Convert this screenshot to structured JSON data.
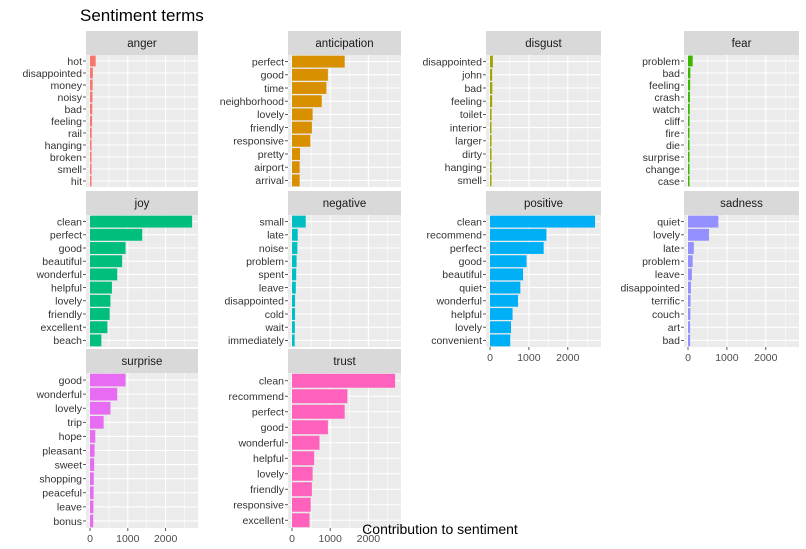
{
  "chart_data": {
    "type": "bar",
    "orientation": "horizontal",
    "title": "Sentiment terms",
    "xlabel": "Contribution to sentiment",
    "ylabel": "",
    "xlim": [
      0,
      2750
    ],
    "x_ticks": [
      0,
      1000,
      2000
    ],
    "grid": true,
    "legend": "none",
    "panels": [
      {
        "name": "anger",
        "color": "#F8766D",
        "categories": [
          "hot",
          "disappointed",
          "money",
          "noisy",
          "bad",
          "feeling",
          "rail",
          "hanging",
          "broken",
          "smell",
          "hit"
        ],
        "values": [
          150,
          75,
          70,
          65,
          60,
          55,
          45,
          40,
          35,
          30,
          25
        ]
      },
      {
        "name": "anticipation",
        "color": "#D89000",
        "categories": [
          "perfect",
          "good",
          "time",
          "neighborhood",
          "lovely",
          "friendly",
          "responsive",
          "pretty",
          "airport",
          "arrival"
        ],
        "values": [
          1380,
          940,
          900,
          780,
          540,
          520,
          480,
          210,
          200,
          200
        ]
      },
      {
        "name": "disgust",
        "color": "#A3A500",
        "categories": [
          "disappointed",
          "john",
          "bad",
          "feeling",
          "toilet",
          "interior",
          "larger",
          "dirty",
          "hanging",
          "smell"
        ],
        "values": [
          75,
          55,
          60,
          55,
          40,
          35,
          30,
          30,
          30,
          30
        ]
      },
      {
        "name": "fear",
        "color": "#39B600",
        "categories": [
          "problem",
          "bad",
          "feeling",
          "crash",
          "watch",
          "cliff",
          "fire",
          "die",
          "surprise",
          "change",
          "case"
        ],
        "values": [
          120,
          60,
          55,
          50,
          45,
          40,
          35,
          30,
          30,
          30,
          25
        ]
      },
      {
        "name": "joy",
        "color": "#00BF7D",
        "categories": [
          "clean",
          "perfect",
          "good",
          "beautiful",
          "wonderful",
          "helpful",
          "lovely",
          "friendly",
          "excellent",
          "beach"
        ],
        "values": [
          2700,
          1380,
          940,
          850,
          720,
          580,
          540,
          520,
          460,
          300
        ]
      },
      {
        "name": "negative",
        "color": "#00BFC4",
        "categories": [
          "small",
          "late",
          "noise",
          "problem",
          "spent",
          "leave",
          "disappointed",
          "cold",
          "wait",
          "immediately"
        ],
        "values": [
          360,
          150,
          140,
          120,
          110,
          100,
          80,
          80,
          75,
          70
        ]
      },
      {
        "name": "positive",
        "color": "#00B0F6",
        "categories": [
          "clean",
          "recommend",
          "perfect",
          "good",
          "beautiful",
          "quiet",
          "wonderful",
          "helpful",
          "lovely",
          "convenient"
        ],
        "values": [
          2700,
          1450,
          1380,
          940,
          850,
          780,
          720,
          580,
          540,
          520
        ]
      },
      {
        "name": "sadness",
        "color": "#9590FF",
        "categories": [
          "quiet",
          "lovely",
          "late",
          "problem",
          "leave",
          "disappointed",
          "terrific",
          "couch",
          "art",
          "bad"
        ],
        "values": [
          780,
          540,
          150,
          120,
          100,
          75,
          65,
          60,
          55,
          55
        ]
      },
      {
        "name": "surprise",
        "color": "#E76BF3",
        "categories": [
          "good",
          "wonderful",
          "lovely",
          "trip",
          "hope",
          "pleasant",
          "sweet",
          "shopping",
          "peaceful",
          "leave",
          "bonus"
        ],
        "values": [
          940,
          720,
          540,
          360,
          140,
          120,
          110,
          100,
          95,
          90,
          85
        ]
      },
      {
        "name": "trust",
        "color": "#FF62BC",
        "categories": [
          "clean",
          "recommend",
          "perfect",
          "good",
          "wonderful",
          "helpful",
          "lovely",
          "friendly",
          "responsive",
          "excellent"
        ],
        "values": [
          2700,
          1450,
          1380,
          940,
          720,
          580,
          540,
          520,
          490,
          460
        ]
      }
    ]
  },
  "style": {
    "panel_background": "#EBEBEB",
    "strip_background": "#D9D9D9",
    "grid_major": "#FFFFFF",
    "axis_text": "#4D4D4D"
  }
}
